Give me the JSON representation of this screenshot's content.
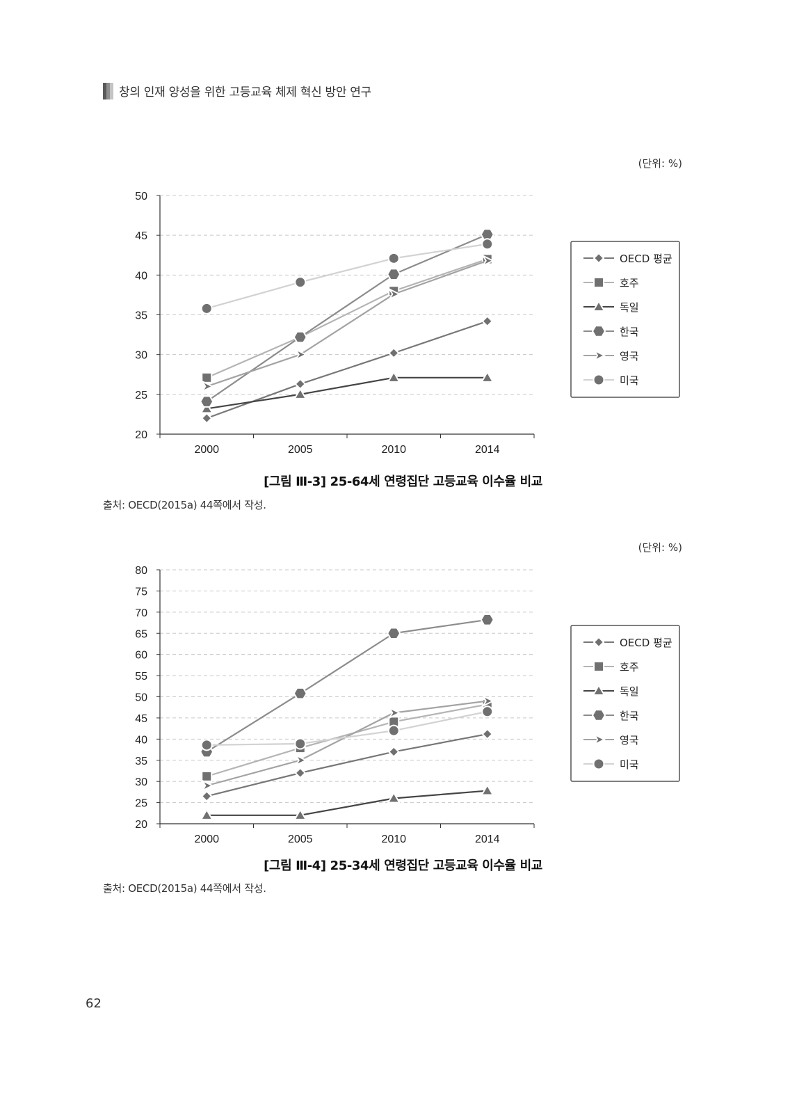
{
  "header": {
    "title": "창의 인재 양성을 위한 고등교육 체제 혁신 방안 연구"
  },
  "page_number": "62",
  "colors": {
    "OECD 평균": "#777777",
    "호주": "#b4b4b4",
    "독일": "#444444",
    "한국": "#8c8c8c",
    "영국": "#a3a3a3",
    "미국": "#d2d2d2",
    "marker": "#707070"
  },
  "figures": [
    {
      "unit_label": "(단위: %)",
      "caption": "[그림 Ⅲ-3] 25-64세 연령집단 고등교육 이수율 비교",
      "source": "출처: OECD(2015a) 44쪽에서 작성."
    },
    {
      "unit_label": "(단위: %)",
      "caption": "[그림 Ⅲ-4] 25-34세 연령집단 고등교육 이수율 비교",
      "source": "출처: OECD(2015a) 44쪽에서 작성."
    }
  ],
  "chart_data": [
    {
      "type": "line",
      "categories": [
        "2000",
        "2005",
        "2010",
        "2014"
      ],
      "ylim": [
        20,
        50
      ],
      "yticks": [
        20,
        25,
        30,
        35,
        40,
        45,
        50
      ],
      "grid": true,
      "legend_position": "right",
      "series": [
        {
          "name": "OECD 평균",
          "marker": "diamond",
          "values": [
            22,
            26.3,
            30.2,
            34.2
          ]
        },
        {
          "name": "호주",
          "marker": "square",
          "values": [
            27.1,
            32.2,
            38,
            42
          ]
        },
        {
          "name": "독일",
          "marker": "triangle",
          "values": [
            23.2,
            25,
            27.1,
            27.1
          ]
        },
        {
          "name": "한국",
          "marker": "hexagon",
          "values": [
            24.1,
            32.2,
            40.1,
            45.1
          ]
        },
        {
          "name": "영국",
          "marker": "arrow",
          "values": [
            26,
            30,
            37.6,
            41.8
          ]
        },
        {
          "name": "미국",
          "marker": "circle",
          "values": [
            35.8,
            39.1,
            42.1,
            43.9
          ]
        }
      ]
    },
    {
      "type": "line",
      "categories": [
        "2000",
        "2005",
        "2010",
        "2014"
      ],
      "ylim": [
        20,
        80
      ],
      "yticks": [
        20,
        25,
        30,
        35,
        40,
        45,
        50,
        55,
        60,
        65,
        70,
        75,
        80
      ],
      "grid": true,
      "legend_position": "right",
      "series": [
        {
          "name": "OECD 평균",
          "marker": "diamond",
          "values": [
            26.5,
            32,
            37,
            41.2
          ]
        },
        {
          "name": "호주",
          "marker": "square",
          "values": [
            31.2,
            37.9,
            44.1,
            48.2
          ]
        },
        {
          "name": "독일",
          "marker": "triangle",
          "values": [
            22,
            22,
            26,
            27.8
          ]
        },
        {
          "name": "한국",
          "marker": "hexagon",
          "values": [
            37,
            50.8,
            65,
            68.2
          ]
        },
        {
          "name": "영국",
          "marker": "arrow",
          "values": [
            29,
            35,
            46.2,
            49
          ]
        },
        {
          "name": "미국",
          "marker": "circle",
          "values": [
            38.6,
            38.9,
            42,
            46.5
          ]
        }
      ]
    }
  ]
}
